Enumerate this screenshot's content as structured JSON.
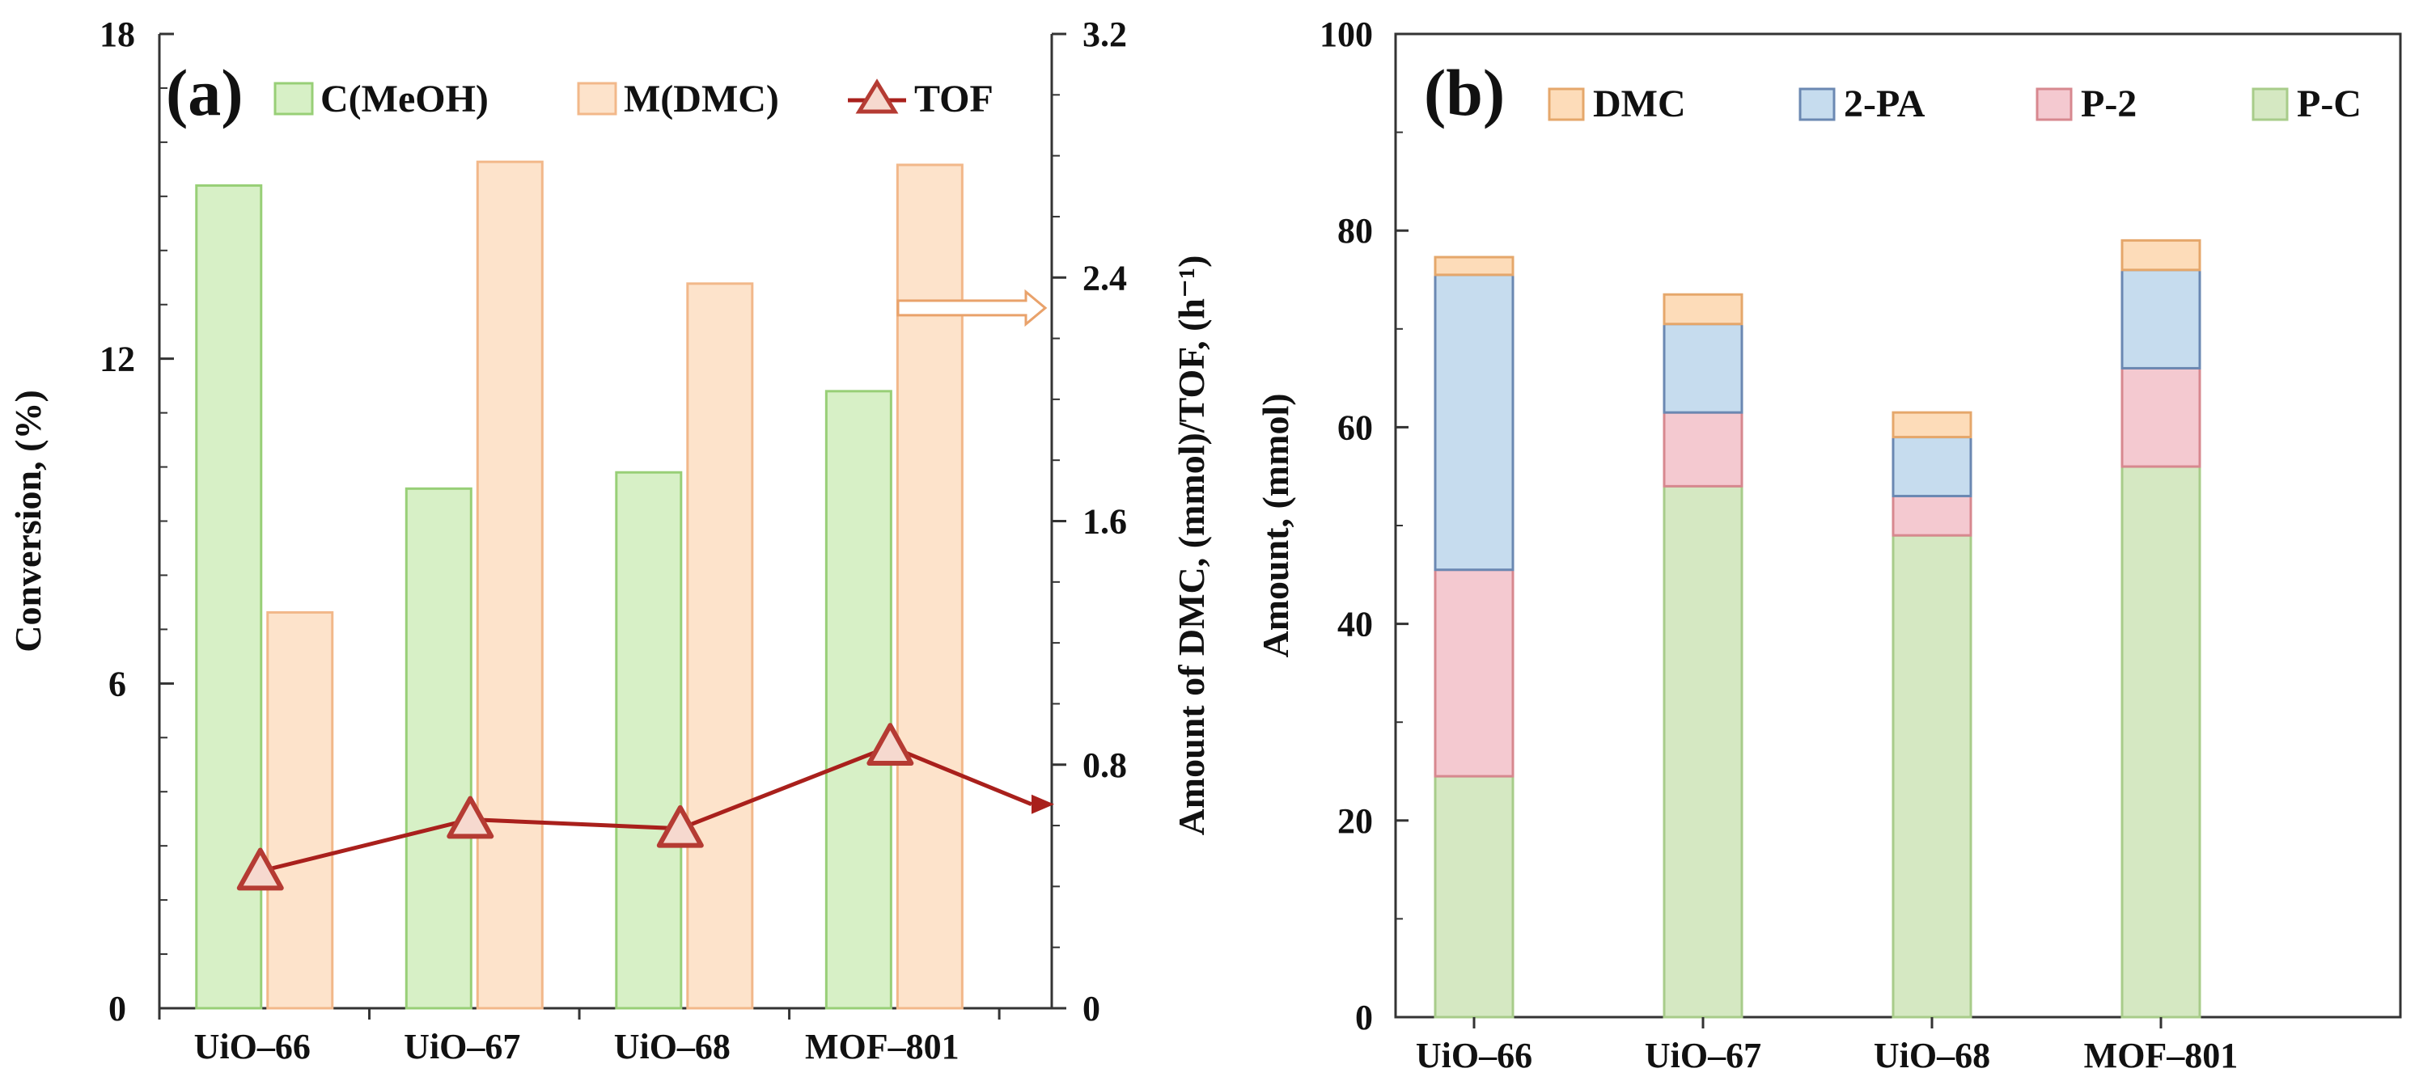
{
  "chart_data": [
    {
      "panel": "(a)",
      "type": "bar+line",
      "categories": [
        "UiO–66",
        "UiO–67",
        "UiO–68",
        "MOF–801"
      ],
      "series": [
        {
          "name": "C(MeOH)",
          "axis": "left",
          "values": [
            15.2,
            9.6,
            9.9,
            11.4
          ],
          "color": "#d7f0c6",
          "stroke": "#98cf77"
        },
        {
          "name": "M(DMC)",
          "axis": "right",
          "values": [
            1.3,
            2.78,
            2.38,
            2.77
          ],
          "color": "#fde3cb",
          "stroke": "#f2b88a"
        },
        {
          "name": "TOF",
          "axis": "right",
          "type": "line",
          "values": [
            0.45,
            0.62,
            0.59,
            0.86
          ],
          "color": "#a9201c"
        }
      ],
      "yleft": {
        "label": "Conversion, (%)",
        "ylim": [
          0,
          18
        ],
        "ticks": [
          "0",
          "6",
          "12",
          "18"
        ]
      },
      "yright": {
        "label": "Amount of DMC, (mmol)/TOF, (h⁻¹)",
        "ylim": [
          0,
          3.2
        ],
        "ticks": [
          "0",
          "0.8",
          "1.6",
          "2.4",
          "3.2"
        ]
      },
      "annotations": [
        "right-arrow toward right axis at 2.3",
        "TOF line continues to right axis at 0.67"
      ]
    },
    {
      "panel": "(b)",
      "type": "stacked_bar",
      "categories": [
        "UiO–66",
        "UiO–67",
        "UiO–68",
        "MOF–801"
      ],
      "series": [
        {
          "name": "P-C",
          "values": [
            24.5,
            54,
            49,
            56
          ],
          "color": "#d5e8c2",
          "stroke": "#a8cc8a"
        },
        {
          "name": "P-2",
          "values": [
            21,
            7.5,
            4,
            10
          ],
          "color": "#f4c9d0",
          "stroke": "#d7888f"
        },
        {
          "name": "2-PA",
          "values": [
            30,
            9,
            6,
            10
          ],
          "color": "#c6dcee",
          "stroke": "#6b88b2"
        },
        {
          "name": "DMC",
          "values": [
            1.8,
            3,
            2.5,
            3
          ],
          "color": "#fddcb9",
          "stroke": "#e5a76b"
        }
      ],
      "ylabel": "Amount, (mmol)",
      "ylim": [
        0,
        100
      ],
      "ticks": [
        "0",
        "20",
        "40",
        "60",
        "80",
        "100"
      ],
      "legend_order": [
        "DMC",
        "2-PA",
        "P-2",
        "P-C"
      ]
    }
  ]
}
